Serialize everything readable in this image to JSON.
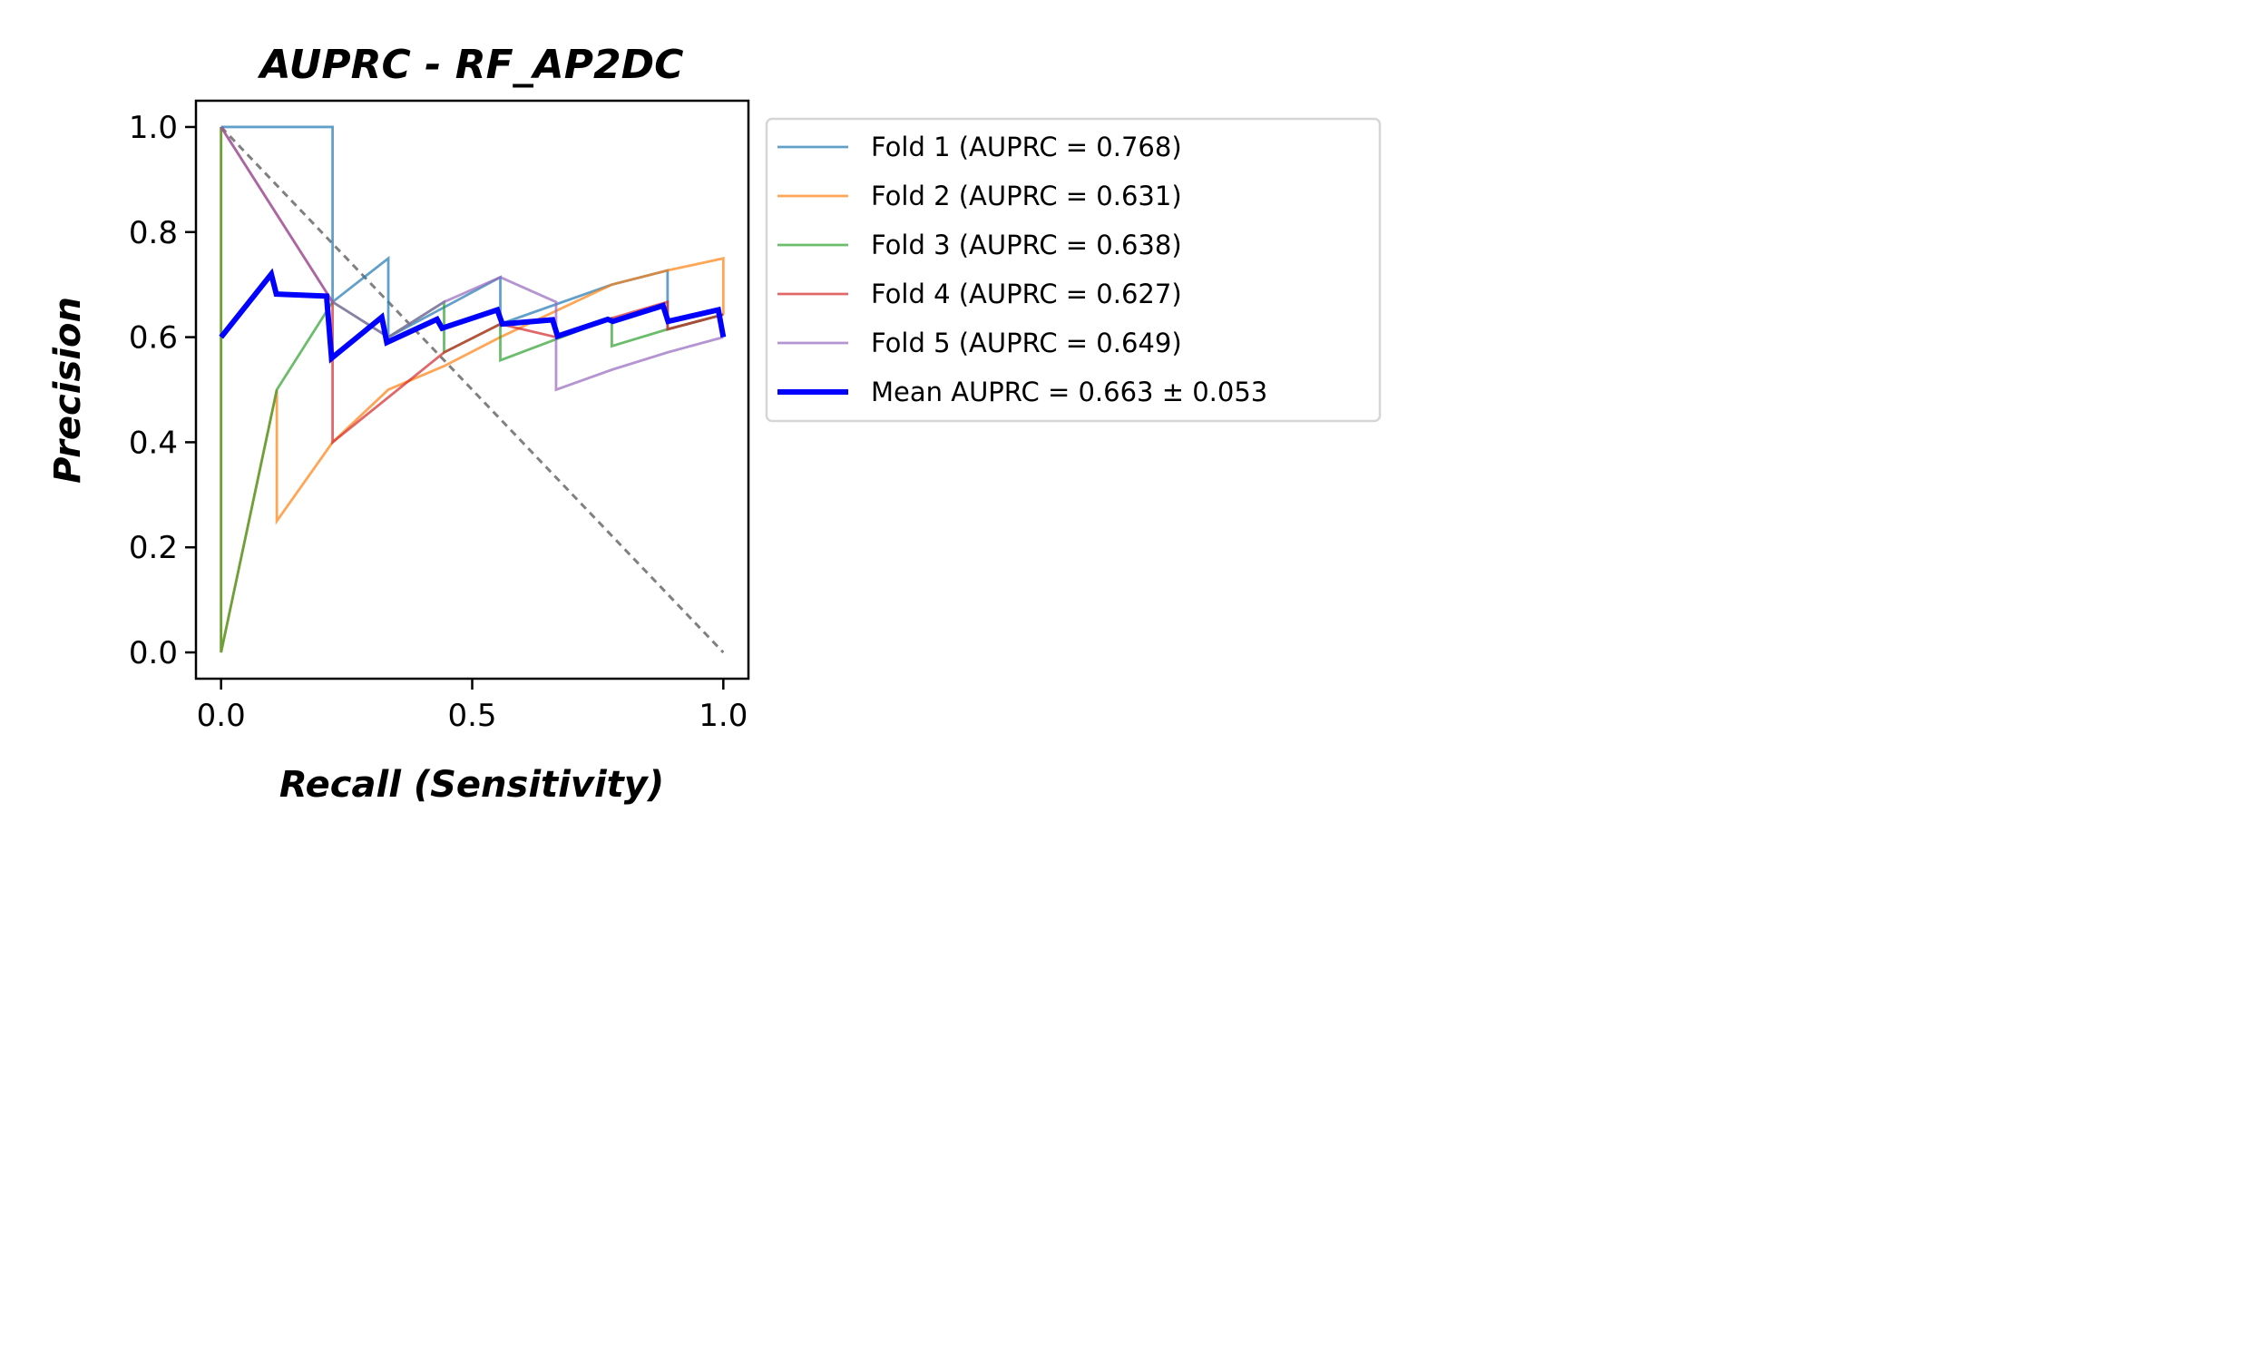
{
  "chart_data": {
    "type": "line",
    "title": "AUPRC - RF_AP2DC",
    "xlabel": "Recall (Sensitivity)",
    "ylabel": "Precision",
    "xlim": [
      -0.05,
      1.05
    ],
    "ylim": [
      -0.05,
      1.05
    ],
    "xticks": [
      {
        "value": 0.0,
        "label": "0.0"
      },
      {
        "value": 0.5,
        "label": "0.5"
      },
      {
        "value": 1.0,
        "label": "1.0"
      }
    ],
    "yticks": [
      {
        "value": 0.0,
        "label": "0.0"
      },
      {
        "value": 0.2,
        "label": "0.2"
      },
      {
        "value": 0.4,
        "label": "0.4"
      },
      {
        "value": 0.6,
        "label": "0.6"
      },
      {
        "value": 0.8,
        "label": "0.8"
      },
      {
        "value": 1.0,
        "label": "1.0"
      }
    ],
    "grid": false,
    "legend_position": "outside-right",
    "series": [
      {
        "name": "Fold 1 (AUPRC = 0.768)",
        "color": "#1f77b4",
        "x": [
          0,
          0,
          0.222,
          0.222,
          0.333,
          0.333,
          0.556,
          0.556,
          0.778,
          0.889,
          0.889,
          1.0,
          1.0
        ],
        "y": [
          1.0,
          1.0,
          1.0,
          0.667,
          0.75,
          0.6,
          0.714,
          0.625,
          0.7,
          0.727,
          0.615,
          0.643,
          0.643
        ]
      },
      {
        "name": "Fold 2 (AUPRC = 0.631)",
        "color": "#ff7f0e",
        "x": [
          0,
          0,
          0.111,
          0.111,
          0.222,
          0.333,
          0.444,
          0.556,
          0.667,
          0.778,
          0.889,
          1.0,
          1.0
        ],
        "y": [
          1.0,
          0.0,
          0.5,
          0.25,
          0.4,
          0.5,
          0.545,
          0.6,
          0.65,
          0.7,
          0.727,
          0.75,
          0.643
        ]
      },
      {
        "name": "Fold 3 (AUPRC = 0.638)",
        "color": "#2ca02c",
        "x": [
          0,
          0,
          0.111,
          0.222,
          0.333,
          0.444,
          0.444,
          0.556,
          0.556,
          0.778,
          0.778,
          0.889,
          1.0
        ],
        "y": [
          1.0,
          0.0,
          0.5,
          0.667,
          0.6,
          0.667,
          0.571,
          0.625,
          0.556,
          0.636,
          0.583,
          0.615,
          0.643
        ]
      },
      {
        "name": "Fold 4 (AUPRC = 0.627)",
        "color": "#d62728",
        "x": [
          0,
          0.222,
          0.222,
          0.444,
          0.556,
          0.667,
          0.778,
          0.889,
          0.889,
          1.0
        ],
        "y": [
          1.0,
          0.667,
          0.4,
          0.571,
          0.625,
          0.6,
          0.636,
          0.667,
          0.615,
          0.643
        ]
      },
      {
        "name": "Fold 5 (AUPRC = 0.649)",
        "color": "#9467bd",
        "x": [
          0,
          0.222,
          0.222,
          0.333,
          0.444,
          0.556,
          0.667,
          0.667,
          0.778,
          0.889,
          1.0
        ],
        "y": [
          1.0,
          0.667,
          0.667,
          0.6,
          0.667,
          0.714,
          0.667,
          0.5,
          0.538,
          0.571,
          0.6
        ]
      },
      {
        "name": "Mean AUPRC = 0.663 ± 0.053",
        "color": "#0000ff",
        "x": [
          0,
          0.1,
          0.11,
          0.21,
          0.22,
          0.32,
          0.33,
          0.43,
          0.44,
          0.55,
          0.56,
          0.66,
          0.67,
          0.77,
          0.78,
          0.88,
          0.89,
          0.99,
          1.0
        ],
        "y": [
          0.6,
          0.72,
          0.682,
          0.678,
          0.56,
          0.638,
          0.59,
          0.634,
          0.617,
          0.652,
          0.625,
          0.633,
          0.602,
          0.634,
          0.63,
          0.66,
          0.63,
          0.652,
          0.6
        ]
      }
    ],
    "reference_line": {
      "x": [
        0,
        1
      ],
      "y": [
        1,
        0
      ],
      "color": "#808080",
      "style": "dashed"
    }
  }
}
